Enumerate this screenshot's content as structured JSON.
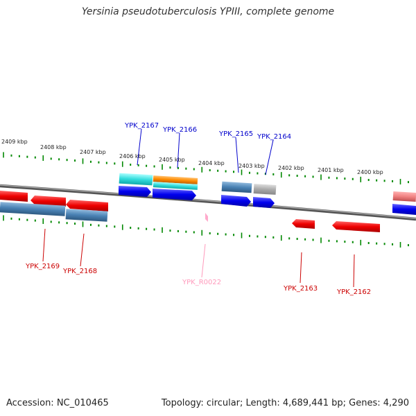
{
  "title": "Yersinia pseudotuberculosis YPIII, complete genome",
  "footer": {
    "accession": "Accession: NC_010465",
    "summary": "Topology: circular; Length: 4,689,441 bp; Genes: 4,290"
  },
  "ruler": {
    "labels": [
      "2409 kbp",
      "2408 kbp",
      "2407 kbp",
      "2406 kbp",
      "2405 kbp",
      "2404 kbp",
      "2403 kbp",
      "2402 kbp",
      "2401 kbp",
      "2400 kbp"
    ]
  },
  "colors": {
    "forward_gene": "#0000ee",
    "reverse_gene": "#ee0000",
    "rna": "#ffaacc",
    "backbone": "#808080",
    "ticks": "#008800",
    "cyan": "#33dddd",
    "orange": "#ff8c00",
    "steel": "#4a82b4",
    "grey": "#aaaaaa",
    "pink": "#f08080"
  },
  "labels": {
    "top": [
      "YPK_2167",
      "YPK_2166",
      "YPK_2165",
      "YPK_2164"
    ],
    "bottom": [
      "YPK_2169",
      "YPK_2168",
      "YPK_R0022",
      "YPK_2163",
      "YPK_2162"
    ]
  }
}
